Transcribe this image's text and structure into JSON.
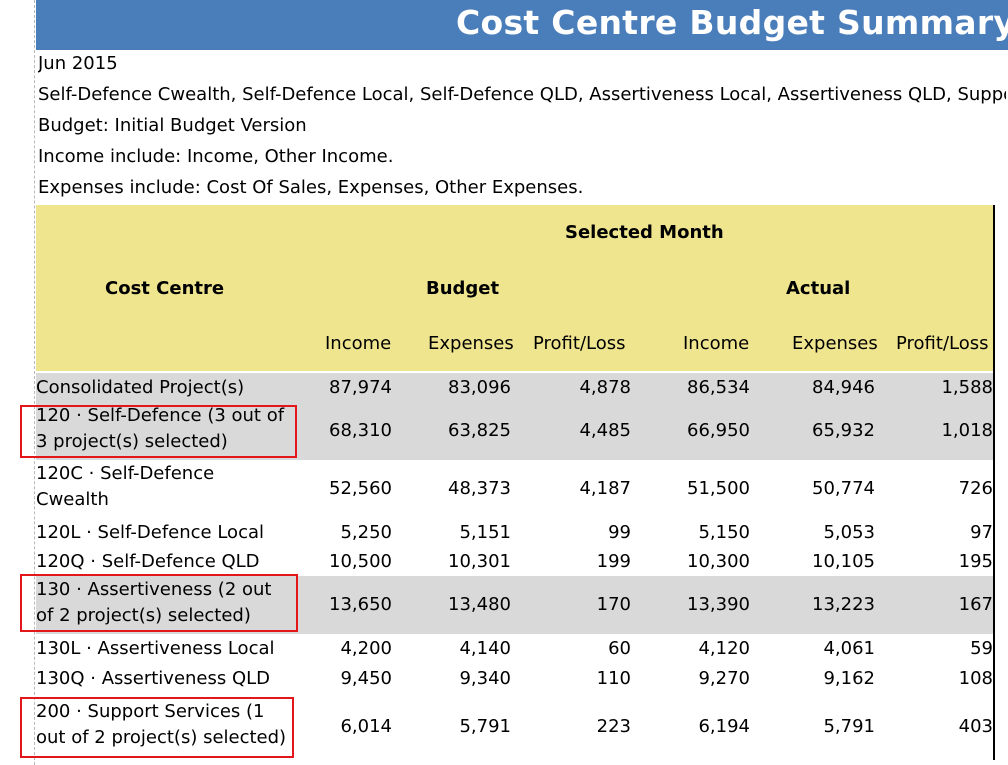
{
  "title": "Cost Centre Budget Summary — N",
  "info": {
    "period": "Jun 2015",
    "projects": "Self-Defence Cwealth, Self-Defence Local, Self-Defence QLD, Assertiveness Local, Assertiveness QLD, Suppor",
    "budget": "Budget:  Initial Budget Version",
    "income_include": "Income include: Income,  Other Income.",
    "expenses_include": "Expenses include: Cost Of Sales,  Expenses,  Other Expenses."
  },
  "header": {
    "selected_month": "Selected Month",
    "cost_centre": "Cost Centre",
    "budget": "Budget",
    "actual": "Actual",
    "columns": [
      "Income",
      "Expenses",
      "Profit/Loss",
      "Income",
      "Expenses",
      "Profit/Loss"
    ]
  },
  "rows": [
    {
      "name": [
        "Consolidated Project(s)"
      ],
      "values": [
        "87,974",
        "83,096",
        "4,878",
        "86,534",
        "84,946",
        "1,588"
      ]
    },
    {
      "name": [
        "120 · Self-Defence (3 out of",
        "3 project(s) selected)"
      ],
      "values": [
        "68,310",
        "63,825",
        "4,485",
        "66,950",
        "65,932",
        "1,018"
      ]
    },
    {
      "name": [
        "120C · Self-Defence",
        "Cwealth"
      ],
      "values": [
        "52,560",
        "48,373",
        "4,187",
        "51,500",
        "50,774",
        "726"
      ]
    },
    {
      "name": [
        "120L · Self-Defence Local"
      ],
      "values": [
        "5,250",
        "5,151",
        "99",
        "5,150",
        "5,053",
        "97"
      ]
    },
    {
      "name": [
        "120Q · Self-Defence QLD"
      ],
      "values": [
        "10,500",
        "10,301",
        "199",
        "10,300",
        "10,105",
        "195"
      ]
    },
    {
      "name": [
        "130 · Assertiveness (2 out",
        "of 2 project(s) selected)"
      ],
      "values": [
        "13,650",
        "13,480",
        "170",
        "13,390",
        "13,223",
        "167"
      ]
    },
    {
      "name": [
        "130L · Assertiveness Local"
      ],
      "values": [
        "4,200",
        "4,140",
        "60",
        "4,120",
        "4,061",
        "59"
      ]
    },
    {
      "name": [
        "130Q · Assertiveness QLD"
      ],
      "values": [
        "9,450",
        "9,340",
        "110",
        "9,270",
        "9,162",
        "108"
      ]
    },
    {
      "name": [
        "200 · Support Services (1",
        "out of 2 project(s) selected)"
      ],
      "values": [
        "6,014",
        "5,791",
        "223",
        "6,194",
        "5,791",
        "403"
      ]
    }
  ]
}
